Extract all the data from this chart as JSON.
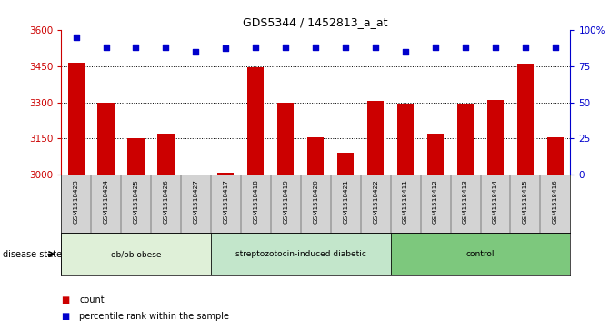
{
  "title": "GDS5344 / 1452813_a_at",
  "samples": [
    "GSM1518423",
    "GSM1518424",
    "GSM1518425",
    "GSM1518426",
    "GSM1518427",
    "GSM1518417",
    "GSM1518418",
    "GSM1518419",
    "GSM1518420",
    "GSM1518421",
    "GSM1518422",
    "GSM1518411",
    "GSM1518412",
    "GSM1518413",
    "GSM1518414",
    "GSM1518415",
    "GSM1518416"
  ],
  "counts": [
    3465,
    3300,
    3150,
    3170,
    3003,
    3008,
    3445,
    3300,
    3155,
    3090,
    3305,
    3295,
    3170,
    3295,
    3310,
    3460,
    3155
  ],
  "percentile_ranks": [
    95,
    88,
    88,
    88,
    85,
    87,
    88,
    88,
    88,
    88,
    88,
    85,
    88,
    88,
    88,
    88,
    88
  ],
  "groups": [
    {
      "label": "ob/ob obese",
      "start": 0,
      "end": 5
    },
    {
      "label": "streptozotocin-induced diabetic",
      "start": 5,
      "end": 11
    },
    {
      "label": "control",
      "start": 11,
      "end": 17
    }
  ],
  "group_colors": [
    "#dff0d8",
    "#c3e6cb",
    "#7dc87d"
  ],
  "ylim_left": [
    3000,
    3600
  ],
  "ylim_right": [
    0,
    100
  ],
  "yticks_left": [
    3000,
    3150,
    3300,
    3450,
    3600
  ],
  "yticks_right": [
    0,
    25,
    50,
    75,
    100
  ],
  "ytick_right_labels": [
    "0",
    "25",
    "50",
    "75",
    "100%"
  ],
  "bar_color": "#cc0000",
  "dot_color": "#0000cc",
  "background_color": "#ffffff",
  "left_axis_color": "#cc0000",
  "right_axis_color": "#0000cc",
  "label_count": "count",
  "label_percentile": "percentile rank within the sample",
  "disease_state_label": "disease state"
}
